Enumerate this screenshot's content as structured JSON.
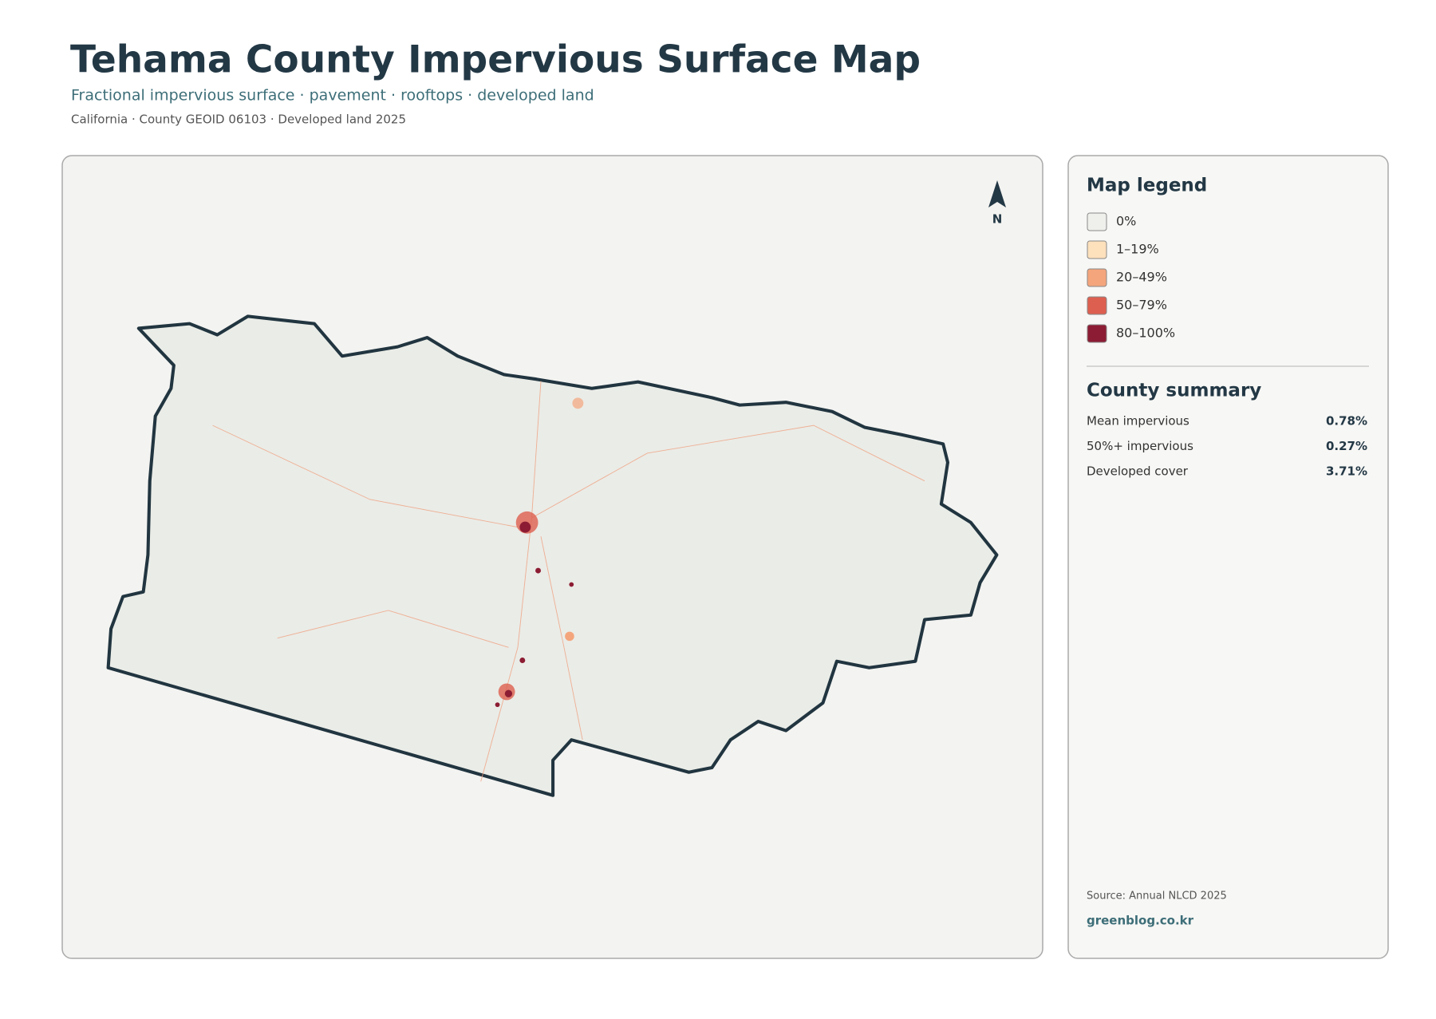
{
  "header": {
    "title": "Tehama County Impervious Surface Map",
    "subtitle": "Fractional impervious surface · pavement · rooftops · developed land",
    "meta": "California · County GEOID 06103 · Developed land 2025"
  },
  "map": {
    "north_label": "N"
  },
  "legend": {
    "title": "Map legend",
    "items": [
      {
        "label": "0%",
        "color": "#efefec"
      },
      {
        "label": "1–19%",
        "color": "#fde0bc"
      },
      {
        "label": "20–49%",
        "color": "#f4a57c"
      },
      {
        "label": "50–79%",
        "color": "#dd5f4f"
      },
      {
        "label": "80–100%",
        "color": "#8c1c33"
      }
    ]
  },
  "summary": {
    "title": "County summary",
    "rows": [
      {
        "label": "Mean impervious",
        "value": "0.78%"
      },
      {
        "label": "50%+ impervious",
        "value": "0.27%"
      },
      {
        "label": "Developed cover",
        "value": "3.71%"
      }
    ]
  },
  "footer": {
    "source": "Source: Annual NLCD 2025",
    "site": "greenblog.co.kr"
  }
}
